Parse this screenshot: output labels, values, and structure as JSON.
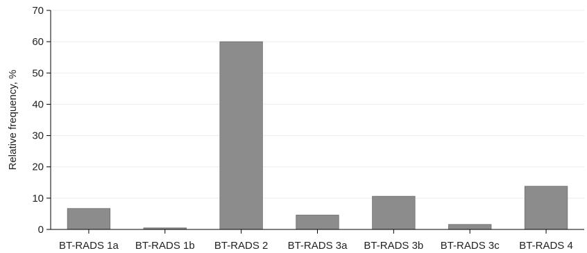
{
  "chart_data": {
    "type": "bar",
    "title": "",
    "xlabel": "",
    "ylabel": "Relative frequency, %",
    "categories": [
      "BT-RADS 1a",
      "BT-RADS 1b",
      "BT-RADS 2",
      "BT-RADS 3a",
      "BT-RADS 3b",
      "BT-RADS 3c",
      "BT-RADS 4"
    ],
    "values": [
      6.7,
      0.5,
      60.0,
      4.6,
      10.6,
      1.6,
      13.8
    ],
    "ylim": [
      0,
      70
    ],
    "yticks": [
      0,
      10,
      20,
      30,
      40,
      50,
      60,
      70
    ],
    "grid": true,
    "legend": "none",
    "colors": {
      "bar": "#8c8c8c",
      "bar_edge": "#6e6e6e",
      "grid": "#ececec",
      "axis": "#000000"
    }
  }
}
